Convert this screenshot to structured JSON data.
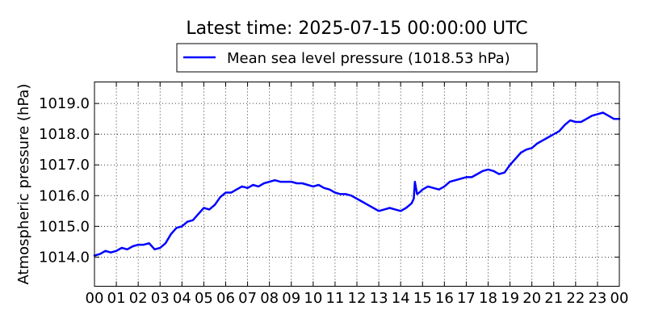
{
  "chart_data": {
    "type": "line",
    "title": "Latest time: 2025-07-15 00:00:00 UTC",
    "ylabel": "Atmospheric pressure (hPa)",
    "xlabel": "",
    "ylim": [
      1013.05,
      1019.7
    ],
    "xlim": [
      0,
      24
    ],
    "grid": true,
    "legend_position": "top-center",
    "x_tick_labels": [
      "00",
      "01",
      "02",
      "03",
      "04",
      "05",
      "06",
      "07",
      "08",
      "09",
      "10",
      "11",
      "12",
      "13",
      "14",
      "15",
      "16",
      "17",
      "18",
      "19",
      "20",
      "21",
      "22",
      "23",
      "00"
    ],
    "y_ticks": [
      1014.0,
      1015.0,
      1016.0,
      1017.0,
      1018.0,
      1019.0
    ],
    "y_tick_labels": [
      "1014.0",
      "1015.0",
      "1016.0",
      "1017.0",
      "1018.0",
      "1019.0"
    ],
    "series": [
      {
        "name": "Mean sea level pressure (1018.53 hPa)",
        "color": "#0000ff",
        "x": [
          0,
          0.25,
          0.5,
          0.75,
          1,
          1.25,
          1.5,
          1.75,
          2,
          2.25,
          2.5,
          2.75,
          3,
          3.25,
          3.5,
          3.75,
          4,
          4.25,
          4.5,
          4.75,
          5,
          5.25,
          5.5,
          5.75,
          6,
          6.25,
          6.5,
          6.75,
          7,
          7.25,
          7.5,
          7.75,
          8,
          8.25,
          8.5,
          8.75,
          9,
          9.25,
          9.5,
          9.75,
          10,
          10.25,
          10.5,
          10.75,
          11,
          11.25,
          11.5,
          11.75,
          12,
          12.25,
          12.5,
          12.75,
          13,
          13.25,
          13.5,
          13.75,
          14,
          14.25,
          14.5,
          14.6,
          14.65,
          14.75,
          14.85,
          15,
          15.25,
          15.5,
          15.75,
          16,
          16.25,
          16.5,
          16.75,
          17,
          17.25,
          17.5,
          17.75,
          18,
          18.25,
          18.5,
          18.75,
          19,
          19.25,
          19.5,
          19.75,
          20,
          20.25,
          20.5,
          20.75,
          21,
          21.25,
          21.5,
          21.75,
          22,
          22.25,
          22.5,
          22.75,
          23,
          23.25,
          23.5,
          23.75,
          24
        ],
        "y": [
          1014.05,
          1014.1,
          1014.2,
          1014.15,
          1014.2,
          1014.3,
          1014.25,
          1014.35,
          1014.4,
          1014.4,
          1014.45,
          1014.25,
          1014.3,
          1014.45,
          1014.75,
          1014.95,
          1015.0,
          1015.15,
          1015.2,
          1015.4,
          1015.6,
          1015.55,
          1015.7,
          1015.95,
          1016.1,
          1016.1,
          1016.2,
          1016.3,
          1016.25,
          1016.35,
          1016.3,
          1016.4,
          1016.45,
          1016.5,
          1016.45,
          1016.45,
          1016.45,
          1016.4,
          1016.4,
          1016.35,
          1016.3,
          1016.35,
          1016.25,
          1016.2,
          1016.1,
          1016.05,
          1016.05,
          1016.0,
          1015.9,
          1015.8,
          1015.7,
          1015.6,
          1015.5,
          1015.55,
          1015.6,
          1015.55,
          1015.5,
          1015.6,
          1015.75,
          1015.9,
          1016.45,
          1016.05,
          1016.1,
          1016.2,
          1016.3,
          1016.25,
          1016.2,
          1016.3,
          1016.45,
          1016.5,
          1016.55,
          1016.6,
          1016.6,
          1016.7,
          1016.8,
          1016.85,
          1016.8,
          1016.7,
          1016.75,
          1017.0,
          1017.2,
          1017.4,
          1017.5,
          1017.55,
          1017.7,
          1017.8,
          1017.9,
          1018.0,
          1018.1,
          1018.3,
          1018.45,
          1018.4,
          1018.4,
          1018.5,
          1018.6,
          1018.65,
          1018.7,
          1018.6,
          1018.5,
          1018.5
        ]
      }
    ]
  }
}
